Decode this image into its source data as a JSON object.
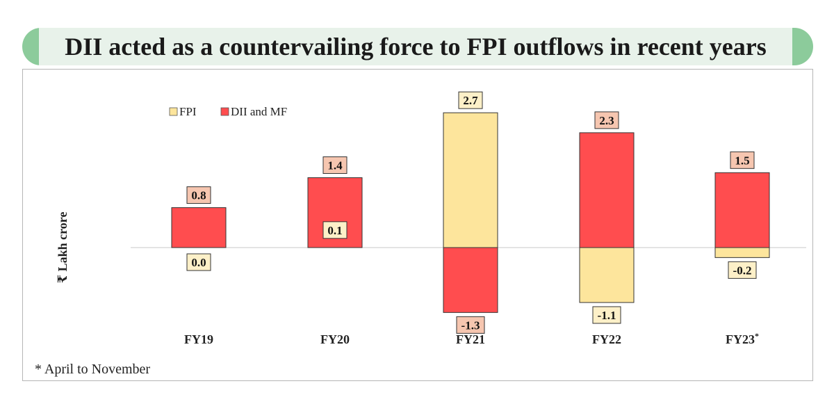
{
  "header": {
    "title": "DII acted as a countervailing force to FPI outflows in recent years"
  },
  "footnote": "* April to November",
  "colors": {
    "fpi": "#fde59c",
    "dii": "#ff4d4f",
    "fpi_label_bg": "#fdf0c8",
    "dii_label_bg": "#f6c6b0",
    "title_band": "#8ccb9b",
    "title_inner": "#e8f2ea"
  },
  "chart_data": {
    "type": "bar",
    "stacked": true,
    "ylabel": "₹ Lakh crore",
    "xlabel": "",
    "ylim": [
      -1.4,
      2.8
    ],
    "grid": false,
    "legend_position": "top-left",
    "categories": [
      "FY19",
      "FY20",
      "FY21",
      "FY22",
      "FY23*"
    ],
    "series": [
      {
        "name": "FPI",
        "values": [
          0.0,
          0.1,
          2.7,
          -1.1,
          -0.2
        ],
        "labels": [
          "0.0",
          "0.1",
          "2.7",
          "-1.1",
          "-0.2"
        ]
      },
      {
        "name": "DII and MF",
        "values": [
          0.8,
          1.4,
          -1.3,
          2.3,
          1.5
        ],
        "labels": [
          "0.8",
          "1.4",
          "-1.3",
          "2.3",
          "1.5"
        ]
      }
    ]
  }
}
